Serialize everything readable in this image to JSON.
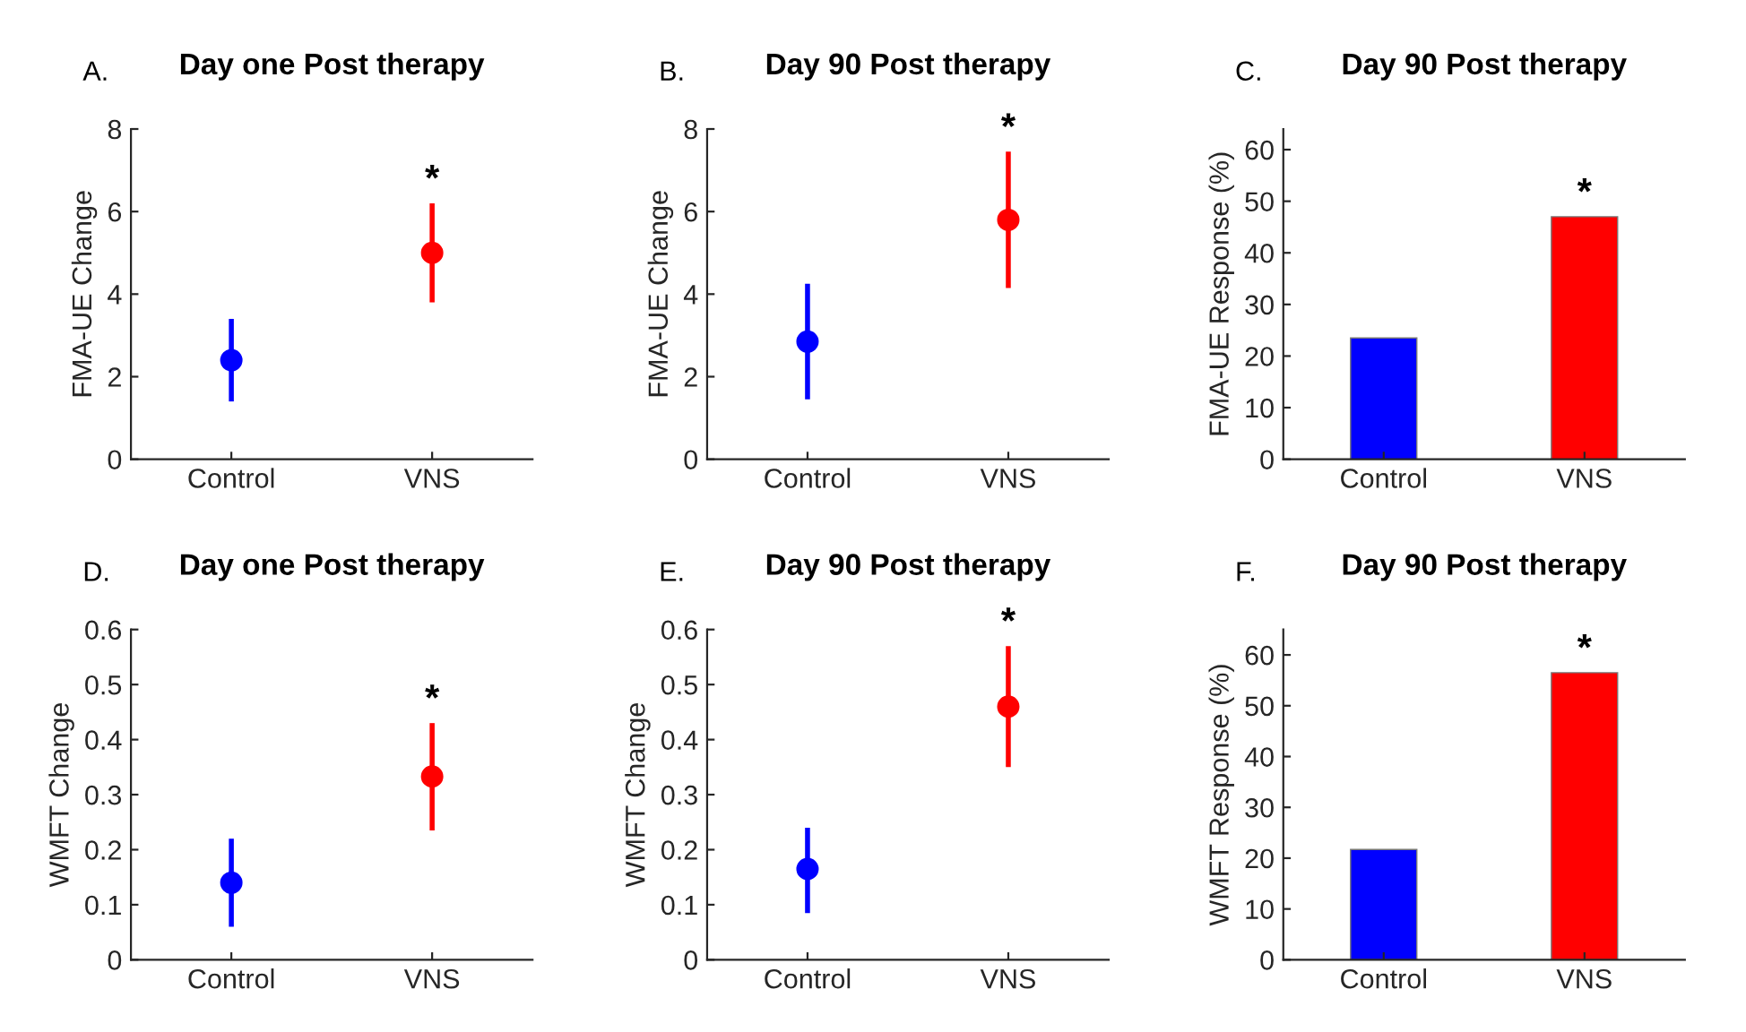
{
  "chart_data": [
    {
      "type": "scatter",
      "title": "Day one Post therapy",
      "ylabel": "FMA-UE Change",
      "categories": [
        "Control",
        "VNS"
      ],
      "values": [
        2.4,
        5.0
      ],
      "colors": [
        "#0000ff",
        "#ff0000"
      ],
      "errors": [
        [
          1.4,
          3.4
        ],
        [
          3.8,
          6.2
        ]
      ],
      "marker": "circle",
      "ylim": [
        0,
        8
      ],
      "yticks": [
        0,
        2,
        4,
        6,
        8
      ],
      "annotations": [
        "A.",
        "*"
      ]
    },
    {
      "type": "scatter",
      "title": "Day 90 Post therapy",
      "ylabel": "FMA-UE Change",
      "categories": [
        "Control",
        "VNS"
      ],
      "values": [
        2.85,
        5.8
      ],
      "colors": [
        "#0000ff",
        "#ff0000"
      ],
      "errors": [
        [
          1.45,
          4.25
        ],
        [
          4.15,
          7.45
        ]
      ],
      "marker": "circle",
      "ylim": [
        0,
        8
      ],
      "yticks": [
        0,
        2,
        4,
        6,
        8
      ],
      "annotations": [
        "B.",
        "*"
      ]
    },
    {
      "type": "bar",
      "title": "Day 90 Post therapy",
      "ylabel": "FMA-UE Response (%)",
      "categories": [
        "Control",
        "VNS"
      ],
      "values": [
        23.5,
        47
      ],
      "colors": [
        "#0000ff",
        "#ff0000"
      ],
      "ylim": [
        0,
        64
      ],
      "yticks": [
        0,
        10,
        20,
        30,
        40,
        50,
        60
      ],
      "annotations": [
        "C.",
        "*"
      ]
    },
    {
      "type": "scatter",
      "title": "Day one Post therapy",
      "ylabel": "WMFT Change",
      "categories": [
        "Control",
        "VNS"
      ],
      "values": [
        0.14,
        0.333
      ],
      "colors": [
        "#0000ff",
        "#ff0000"
      ],
      "errors": [
        [
          0.06,
          0.22
        ],
        [
          0.235,
          0.43
        ]
      ],
      "marker": "circle",
      "ylim": [
        0,
        0.6
      ],
      "yticks": [
        0,
        0.1,
        0.2,
        0.3,
        0.4,
        0.5,
        0.6
      ],
      "annotations": [
        "D.",
        "*"
      ]
    },
    {
      "type": "scatter",
      "title": "Day 90 Post therapy",
      "ylabel": "WMFT Change",
      "categories": [
        "Control",
        "VNS"
      ],
      "values": [
        0.165,
        0.46
      ],
      "colors": [
        "#0000ff",
        "#ff0000"
      ],
      "errors": [
        [
          0.085,
          0.24
        ],
        [
          0.35,
          0.57
        ]
      ],
      "marker": "circle",
      "ylim": [
        0,
        0.6
      ],
      "yticks": [
        0,
        0.1,
        0.2,
        0.3,
        0.4,
        0.5,
        0.6
      ],
      "annotations": [
        "E.",
        "*"
      ]
    },
    {
      "type": "bar",
      "title": "Day 90 Post therapy",
      "ylabel": "WMFT Response (%)",
      "categories": [
        "Control",
        "VNS"
      ],
      "values": [
        21.7,
        56.5
      ],
      "colors": [
        "#0000ff",
        "#ff0000"
      ],
      "ylim": [
        0,
        65
      ],
      "yticks": [
        0,
        10,
        20,
        30,
        40,
        50,
        60
      ],
      "annotations": [
        "F.",
        "*"
      ]
    }
  ]
}
